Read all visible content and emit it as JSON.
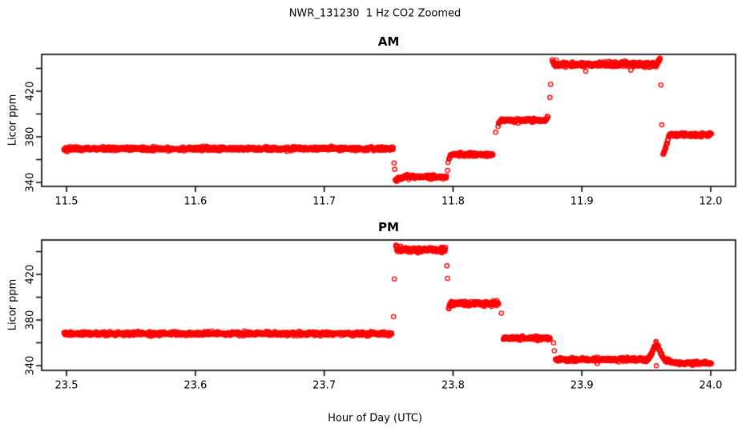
{
  "chart_data": {
    "type": "scatter",
    "title": "NWR_131230  1 Hz CO2 Zoomed",
    "xlabel": "Hour of Day (UTC)",
    "ylabel": "Licor ppm",
    "point_color": "#ff0000",
    "axis_color": "#000000",
    "marker": "open-circle",
    "sample_points_per_hour": 3600,
    "panels": [
      {
        "id": "am",
        "title": "AM",
        "xlim": [
          11.48072,
          12.01928
        ],
        "ylim": [
          336.5,
          452.3
        ],
        "x_ticks": [
          11.5,
          11.6,
          11.7,
          11.8,
          11.9,
          12.0
        ],
        "x_tick_labels": [
          "11.5",
          "11.6",
          "11.7",
          "11.8",
          "11.9",
          "12.0"
        ],
        "y_ticks": [
          340,
          360,
          380,
          400,
          420,
          440
        ],
        "y_tick_labels": [
          "340",
          "",
          "380",
          "",
          "420",
          ""
        ],
        "segments": [
          {
            "t0": 11.498,
            "t1": 11.7535,
            "ppm": 369.5,
            "sd": 0.8
          },
          {
            "t0": 11.7552,
            "t1": 11.795,
            "ppm": 344.8,
            "sd": 0.8,
            "in": [
              342.0,
              0.006
            ]
          },
          {
            "t0": 11.7968,
            "t1": 11.831,
            "ppm": 364.5,
            "sd": 0.8,
            "in": [
              361.0,
              0.002
            ]
          },
          {
            "t0": 11.835,
            "t1": 11.8735,
            "ppm": 394.5,
            "sd": 0.8,
            "in": [
              390.0,
              0.002
            ],
            "out": [
              398.0,
              0.0015
            ]
          },
          {
            "t0": 11.877,
            "t1": 11.9605,
            "ppm": 443.5,
            "sd": 1.1,
            "in": [
              446.0,
              0.0015
            ],
            "out": [
              448.5,
              0.002
            ]
          },
          {
            "t0": 11.963,
            "t1": 12.0005,
            "ppm": 381.8,
            "sd": 0.8,
            "in": [
              364.0,
              0.005
            ]
          }
        ],
        "extra_points": [
          [
            11.7542,
            357.0
          ],
          [
            11.7547,
            351.5
          ],
          [
            11.7957,
            350.5
          ],
          [
            11.7961,
            357.5
          ],
          [
            11.833,
            384.0
          ],
          [
            11.8752,
            414.5
          ],
          [
            11.8757,
            426.0
          ],
          [
            11.903,
            437.5
          ],
          [
            11.938,
            438.5
          ],
          [
            11.9613,
            425.5
          ],
          [
            11.962,
            390.5
          ]
        ]
      },
      {
        "id": "pm",
        "title": "PM",
        "xlim": [
          23.48072,
          24.01928
        ],
        "ylim": [
          335.8,
          450.2
        ],
        "x_ticks": [
          23.5,
          23.6,
          23.7,
          23.8,
          23.9,
          24.0
        ],
        "x_tick_labels": [
          "23.5",
          "23.6",
          "23.7",
          "23.8",
          "23.9",
          "24.0"
        ],
        "y_ticks": [
          340,
          360,
          380,
          400,
          420,
          440
        ],
        "y_tick_labels": [
          "340",
          "",
          "380",
          "",
          "420",
          ""
        ],
        "segments": [
          {
            "t0": 23.498,
            "t1": 23.7525,
            "ppm": 368.0,
            "sd": 0.8
          },
          {
            "t0": 23.7555,
            "t1": 23.794,
            "ppm": 441.5,
            "sd": 1.1,
            "in": [
              445.5,
              0.0015
            ]
          },
          {
            "t0": 23.7965,
            "t1": 23.8355,
            "ppm": 394.5,
            "sd": 0.9,
            "in": [
              390.5,
              0.002
            ]
          },
          {
            "t0": 23.839,
            "t1": 23.8755,
            "ppm": 364.0,
            "sd": 0.8
          },
          {
            "t0": 23.8795,
            "t1": 23.949,
            "ppm": 345.2,
            "sd": 0.8
          },
          {
            "t0": 23.949,
            "t1": 23.966,
            "ppm": 344.5,
            "sd": 0.8,
            "bump": [
              23.9578,
              13.5,
              0.0042
            ]
          },
          {
            "t0": 23.966,
            "t1": 24.0005,
            "ppm": 342.3,
            "sd": 0.7,
            "in": [
              345.5,
              0.005
            ]
          }
        ],
        "extra_points": [
          [
            23.7538,
            383.0
          ],
          [
            23.7544,
            416.0
          ],
          [
            23.7952,
            427.5
          ],
          [
            23.7957,
            416.5
          ],
          [
            23.8375,
            386.0
          ],
          [
            23.878,
            360.0
          ],
          [
            23.8786,
            353.0
          ],
          [
            23.912,
            341.8
          ],
          [
            23.9575,
            361.0
          ],
          [
            23.9578,
            339.8
          ]
        ]
      }
    ]
  }
}
